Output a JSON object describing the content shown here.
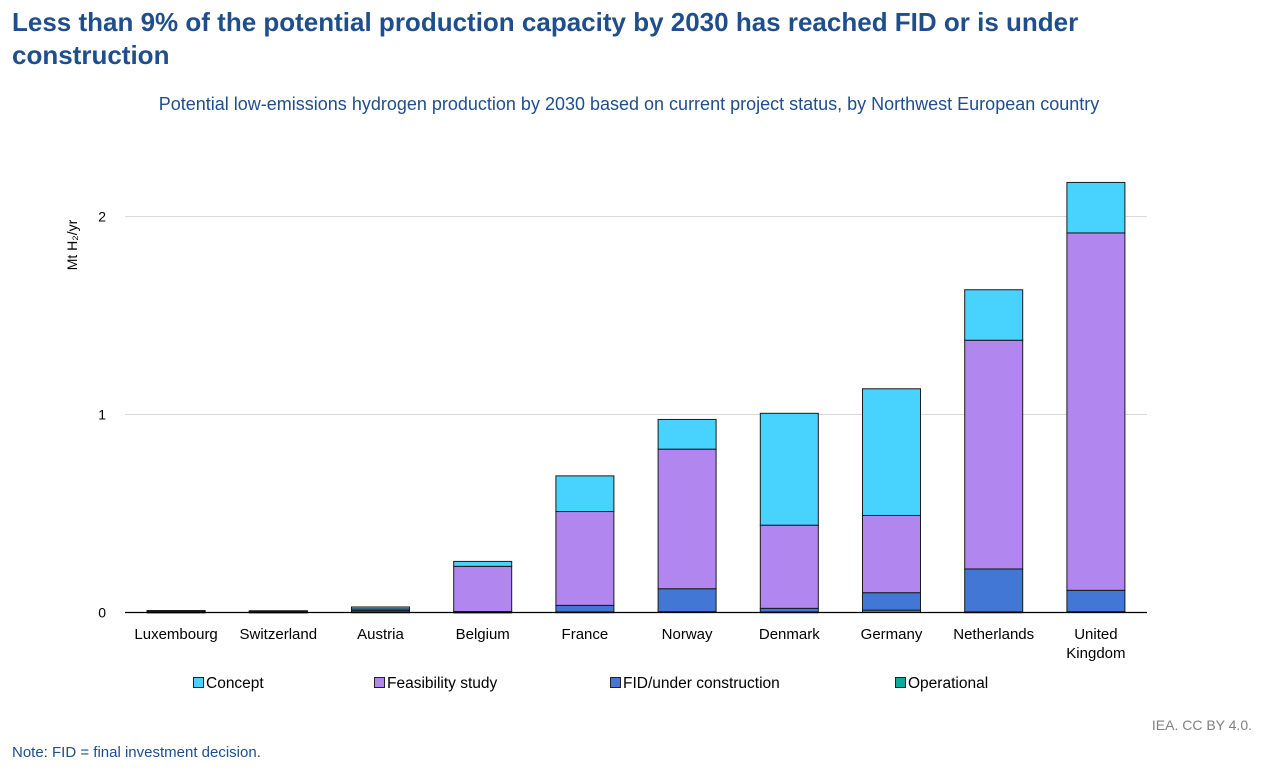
{
  "header": {
    "title": "Less than 9% of the potential production capacity by 2030 has reached FID or is under construction",
    "subtitle": "Potential low-emissions hydrogen production by 2030 based on current project status, by Northwest European country"
  },
  "footer": {
    "source": "IEA. CC BY 4.0.",
    "note": "Note: FID = final investment decision."
  },
  "colors": {
    "Concept": "#47d3fd",
    "Feasibility study": "#b186ef",
    "FID/under construction": "#4277d5",
    "Operational": "#13a89e"
  },
  "chart_data": {
    "type": "bar",
    "stacked": true,
    "ylabel": "Mt H₂/yr",
    "ylim": [
      0,
      2.2
    ],
    "yticks": [
      0,
      1,
      2
    ],
    "grid": true,
    "legend_position": "bottom",
    "categories": [
      "Luxembourg",
      "Switzerland",
      "Austria",
      "Belgium",
      "France",
      "Norway",
      "Denmark",
      "Germany",
      "Netherlands",
      "United Kingdom"
    ],
    "series": [
      {
        "name": "Operational",
        "values": [
          0.002,
          0.002,
          0.003,
          0.002,
          0.003,
          0.004,
          0.003,
          0.012,
          0.003,
          0.004
        ]
      },
      {
        "name": "FID/under construction",
        "values": [
          0.004,
          0.003,
          0.008,
          0.003,
          0.033,
          0.116,
          0.018,
          0.088,
          0.217,
          0.108
        ]
      },
      {
        "name": "Feasibility study",
        "values": [
          0.002,
          0.002,
          0.007,
          0.228,
          0.474,
          0.705,
          0.42,
          0.39,
          1.155,
          1.805
        ]
      },
      {
        "name": "Concept",
        "values": [
          0.002,
          0.002,
          0.01,
          0.025,
          0.18,
          0.15,
          0.565,
          0.64,
          0.255,
          0.255
        ]
      }
    ]
  }
}
